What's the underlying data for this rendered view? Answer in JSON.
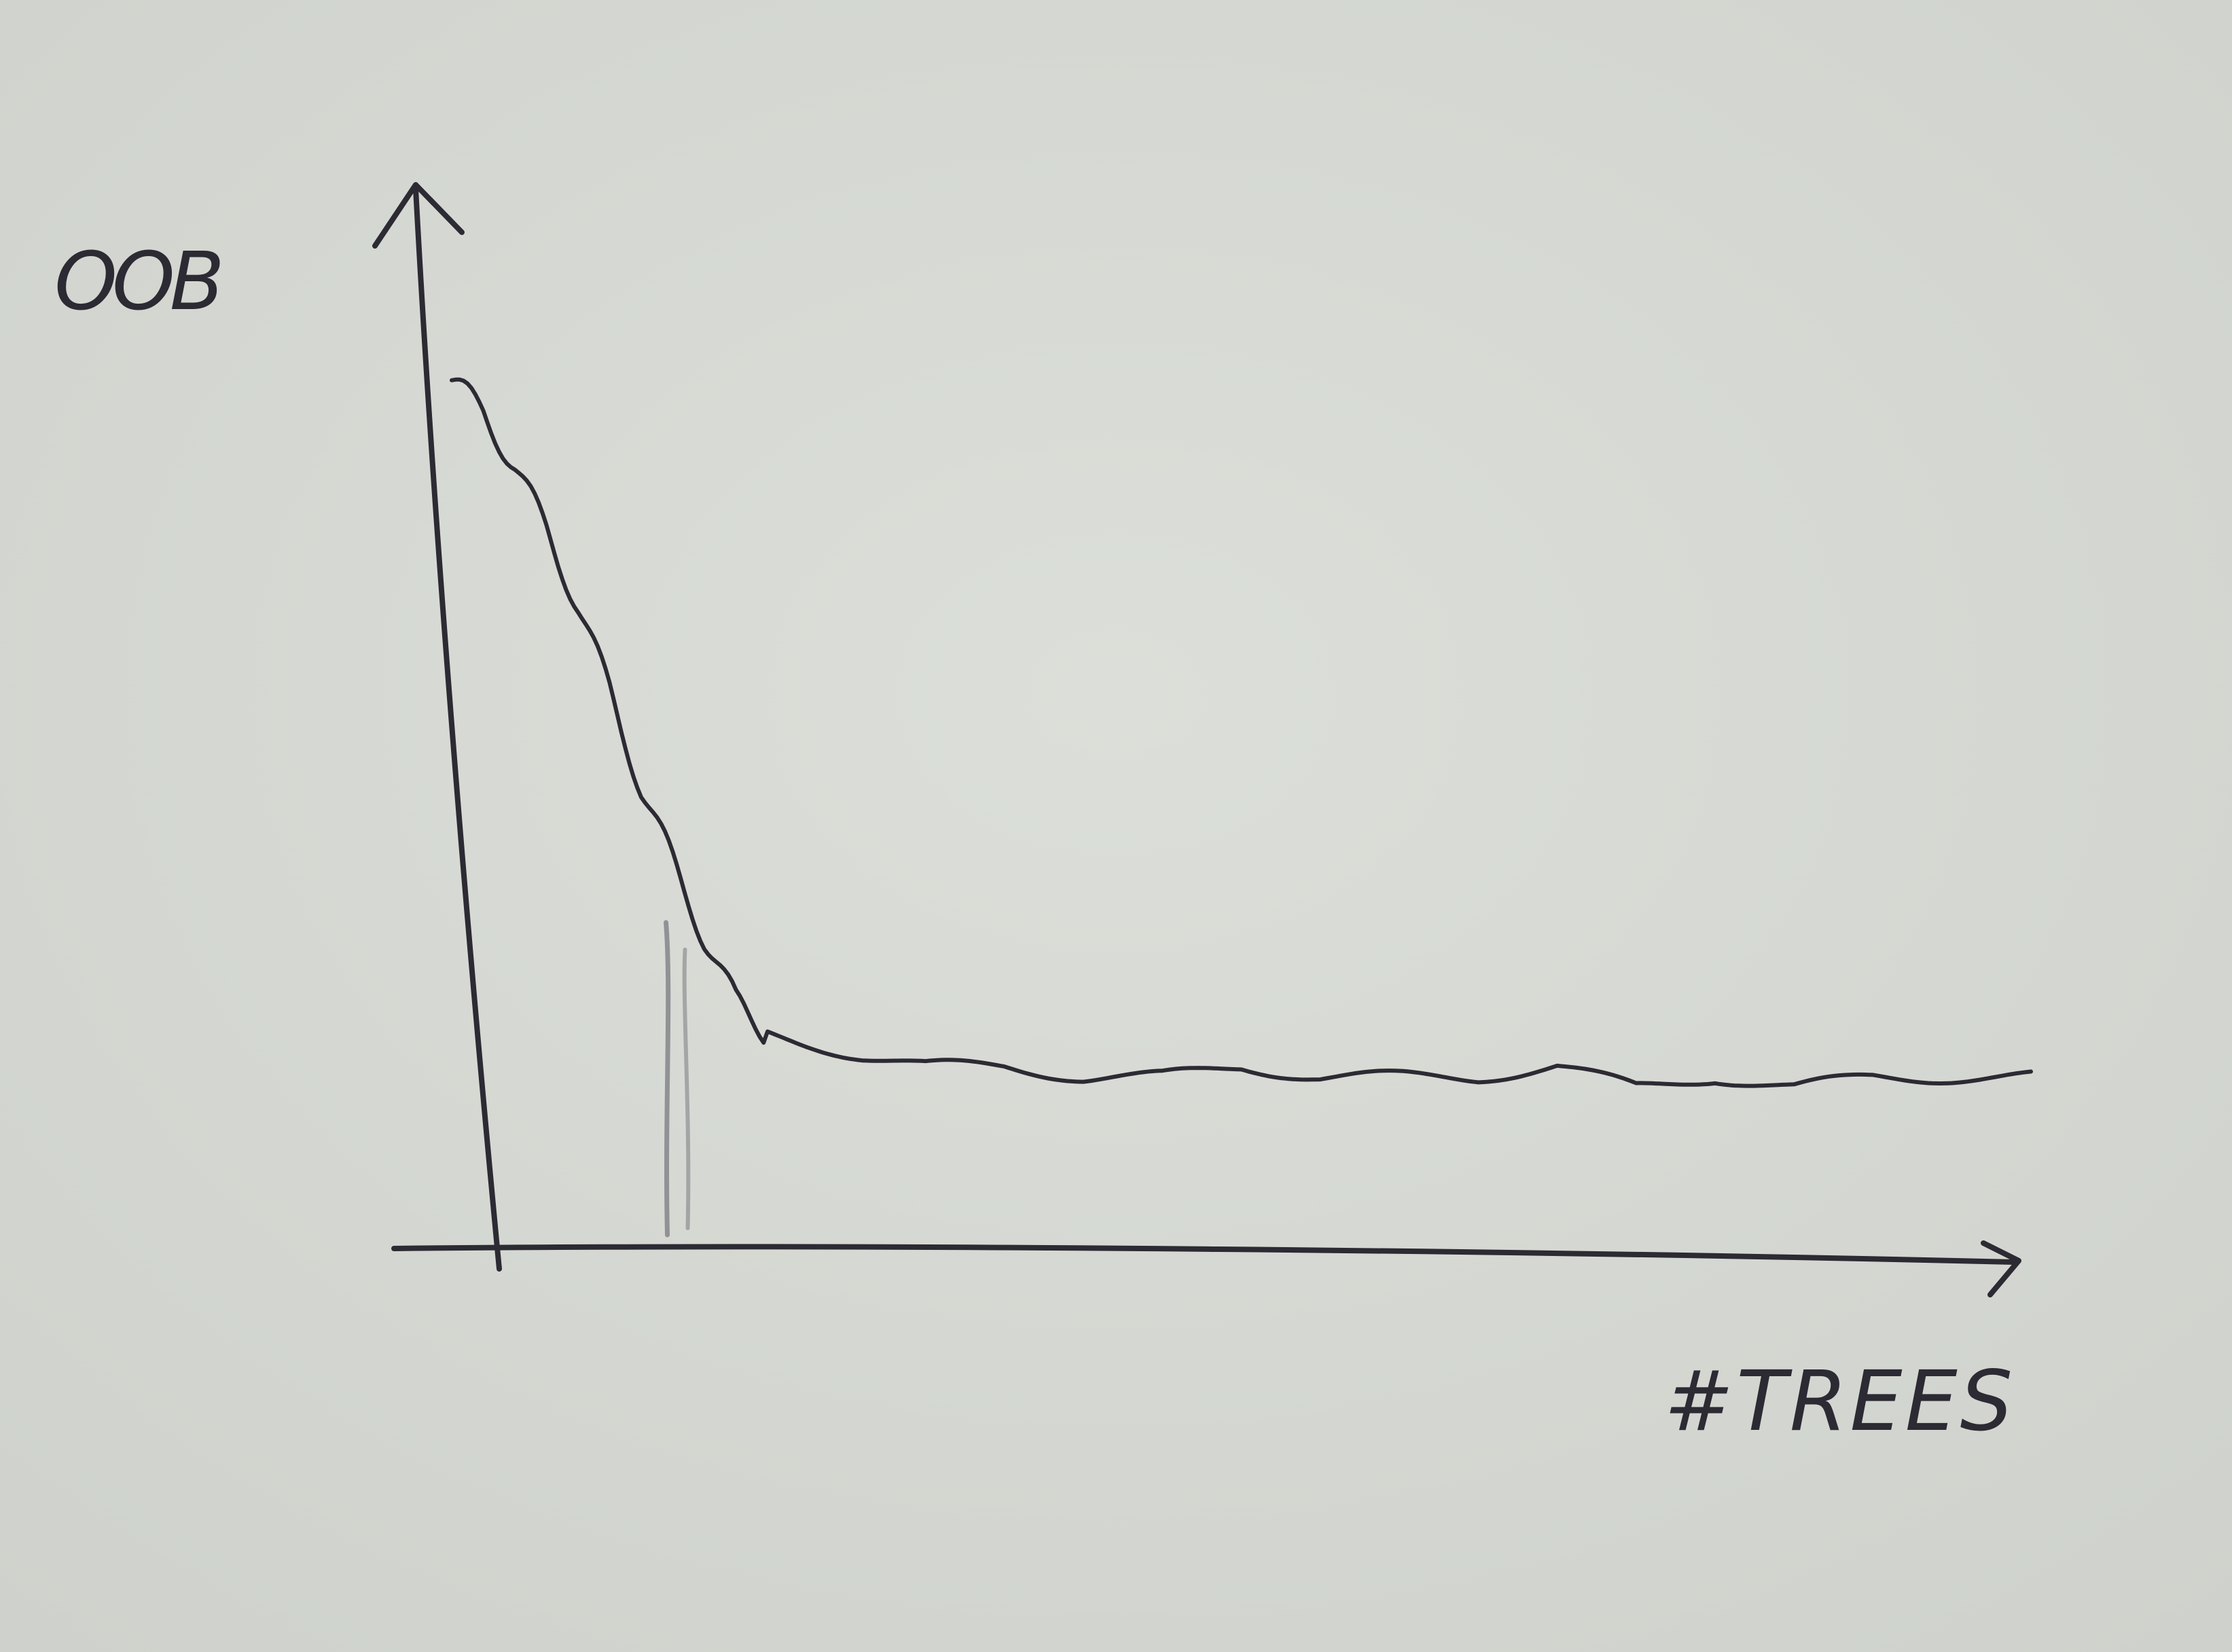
{
  "chart_data": {
    "type": "line",
    "ylabel": "OOB",
    "xlabel": "#TREES",
    "x": [
      0.0,
      0.02,
      0.04,
      0.06,
      0.08,
      0.1,
      0.12,
      0.14,
      0.16,
      0.18,
      0.2,
      0.23,
      0.26,
      0.3,
      0.35,
      0.4,
      0.45,
      0.5,
      0.55,
      0.6,
      0.65,
      0.7,
      0.75,
      0.8,
      0.85,
      0.9,
      0.95,
      1.0
    ],
    "series": [
      {
        "values": [
          0.81,
          0.78,
          0.73,
          0.67,
          0.6,
          0.52,
          0.43,
          0.36,
          0.29,
          0.23,
          0.2,
          0.19,
          0.18,
          0.17,
          0.17,
          0.16,
          0.16,
          0.17,
          0.16,
          0.16,
          0.16,
          0.17,
          0.15,
          0.16,
          0.15,
          0.16,
          0.16,
          0.16
        ]
      }
    ],
    "marker_x": 0.14,
    "grid": false,
    "legend": "none",
    "colors": {
      "paper": "#d9dbd6",
      "ink": "#2c2a33",
      "marker": "#7a7a80"
    }
  }
}
